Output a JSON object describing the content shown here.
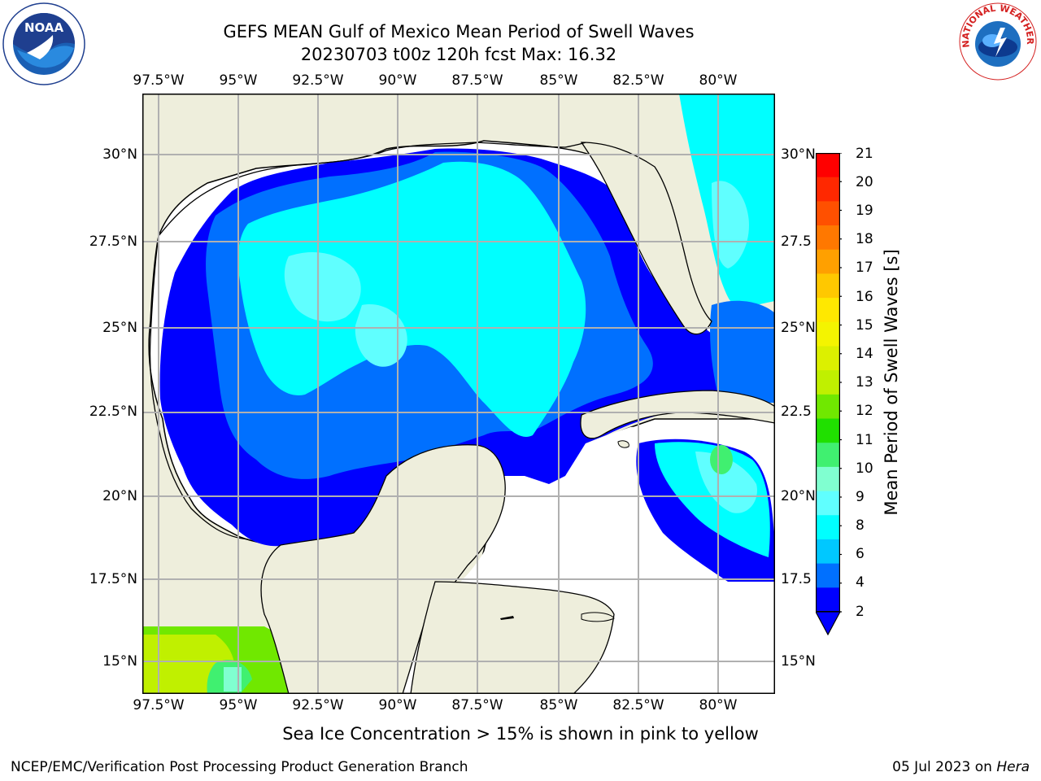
{
  "header": {
    "title_line1": "GEFS MEAN Gulf of Mexico Mean Period of Swell Waves",
    "title_line2": "20230703 t00z 120h fcst   Max: 16.32"
  },
  "logos": {
    "noara_left": "NOAA",
    "nws_right": "NATIONAL WEATHER SERVICE"
  },
  "map": {
    "lon_ticks": [
      "97.5°W",
      "95°W",
      "92.5°W",
      "90°W",
      "87.5°W",
      "85°W",
      "82.5°W",
      "80°W"
    ],
    "lat_ticks_left": [
      "30°N",
      "27.5°N",
      "25°N",
      "22.5°N",
      "20°N",
      "17.5°N",
      "15°N"
    ],
    "lat_ticks_right": [
      "30°N",
      "27.5",
      "25°N",
      "22.5",
      "20°N",
      "17.5",
      "15°N"
    ],
    "colors": {
      "land": "#eeeedc",
      "no_data": "#ffffff",
      "grid": "#b0b0b0"
    }
  },
  "colorbar": {
    "label": "Mean Period of Swell Waves [s]",
    "ticks": [
      "21",
      "20",
      "19",
      "18",
      "17",
      "16",
      "15",
      "14",
      "13",
      "12",
      "11",
      "10",
      "9",
      "8",
      "6",
      "4",
      "2"
    ],
    "colors": [
      "#ff0000",
      "#ff2800",
      "#ff5000",
      "#ff7800",
      "#ffa000",
      "#ffc800",
      "#ffe800",
      "#f4f400",
      "#dcf000",
      "#c0f000",
      "#70e800",
      "#20e000",
      "#40f070",
      "#80ffd0",
      "#60ffff",
      "#00ffff",
      "#00c8ff",
      "#0070ff",
      "#0000ff"
    ]
  },
  "footer": {
    "note": "Sea Ice Concentration > 15% is shown in pink to yellow",
    "credit": "NCEP/EMC/Verification Post Processing Product Generation Branch",
    "date": "05 Jul 2023 on ",
    "machine": "Hera"
  }
}
